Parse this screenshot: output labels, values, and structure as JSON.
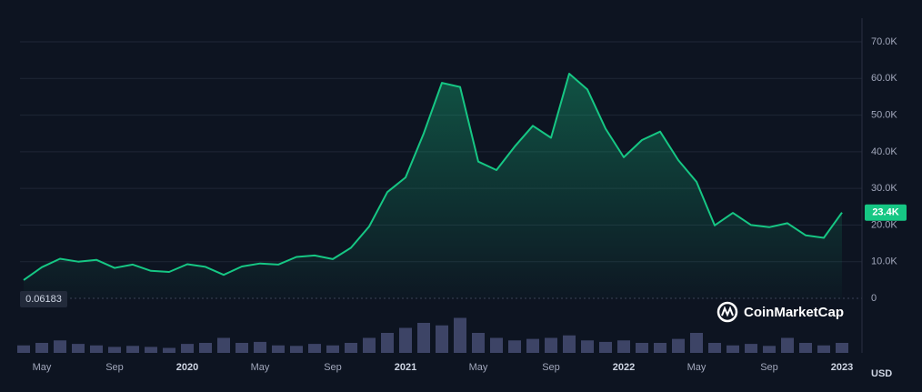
{
  "chart_data": {
    "type": "line",
    "x": [
      "2019-04",
      "2019-05",
      "2019-06",
      "2019-07",
      "2019-08",
      "2019-09",
      "2019-10",
      "2019-11",
      "2019-12",
      "2020-01",
      "2020-02",
      "2020-03",
      "2020-04",
      "2020-05",
      "2020-06",
      "2020-07",
      "2020-08",
      "2020-09",
      "2020-10",
      "2020-11",
      "2020-12",
      "2021-01",
      "2021-02",
      "2021-03",
      "2021-04",
      "2021-05",
      "2021-06",
      "2021-07",
      "2021-08",
      "2021-09",
      "2021-10",
      "2021-11",
      "2021-12",
      "2022-01",
      "2022-02",
      "2022-03",
      "2022-04",
      "2022-05",
      "2022-06",
      "2022-07",
      "2022-08",
      "2022-09",
      "2022-10",
      "2022-11",
      "2022-12",
      "2023-01"
    ],
    "series": [
      {
        "color": "#16c784",
        "values": [
          5000,
          8500,
          10800,
          10000,
          10500,
          8300,
          9200,
          7500,
          7200,
          9300,
          8600,
          6400,
          8700,
          9500,
          9200,
          11300,
          11700,
          10700,
          13800,
          19600,
          29000,
          33000,
          45000,
          58800,
          57700,
          37300,
          35000,
          41400,
          47100,
          43800,
          61300,
          57000,
          46300,
          38500,
          43200,
          45500,
          37700,
          31800,
          19900,
          23300,
          20000,
          19400,
          20500,
          17200,
          16500,
          23400
        ]
      }
    ],
    "volume": {
      "color": "#3d4466",
      "values": [
        15,
        20,
        25,
        18,
        15,
        12,
        14,
        12,
        10,
        18,
        20,
        30,
        20,
        22,
        15,
        14,
        18,
        15,
        20,
        30,
        40,
        50,
        60,
        55,
        70,
        40,
        30,
        25,
        28,
        30,
        35,
        25,
        22,
        25,
        20,
        20,
        28,
        40,
        20,
        15,
        18,
        14,
        30,
        20,
        15,
        20
      ],
      "ylim": [
        0,
        100
      ]
    },
    "xlim": [
      "2019-04",
      "2023-02"
    ],
    "xticks": [
      {
        "value": "2019-05",
        "label": "May"
      },
      {
        "value": "2019-09",
        "label": "Sep"
      },
      {
        "value": "2020-01",
        "label": "2020"
      },
      {
        "value": "2020-05",
        "label": "May"
      },
      {
        "value": "2020-09",
        "label": "Sep"
      },
      {
        "value": "2021-01",
        "label": "2021"
      },
      {
        "value": "2021-05",
        "label": "May"
      },
      {
        "value": "2021-09",
        "label": "Sep"
      },
      {
        "value": "2022-01",
        "label": "2022"
      },
      {
        "value": "2022-05",
        "label": "May"
      },
      {
        "value": "2022-09",
        "label": "Sep"
      },
      {
        "value": "2023-01",
        "label": "2023"
      }
    ],
    "ylim": [
      0,
      70000
    ],
    "yticks": [
      0,
      {
        "value": 10000,
        "label": "10.0K"
      },
      {
        "value": 20000,
        "label": "20.0K"
      },
      {
        "value": 30000,
        "label": "30.0K"
      },
      {
        "value": 40000,
        "label": "40.0K"
      },
      {
        "value": 50000,
        "label": "50.0K"
      },
      {
        "value": 60000,
        "label": "60.0K"
      },
      {
        "value": 70000,
        "label": "70.0K"
      }
    ],
    "grid": true,
    "current_price": {
      "value": 23400,
      "label": "23.4K"
    },
    "low_label": "0.06183",
    "currency": "USD",
    "brand": "CoinMarketCap"
  }
}
